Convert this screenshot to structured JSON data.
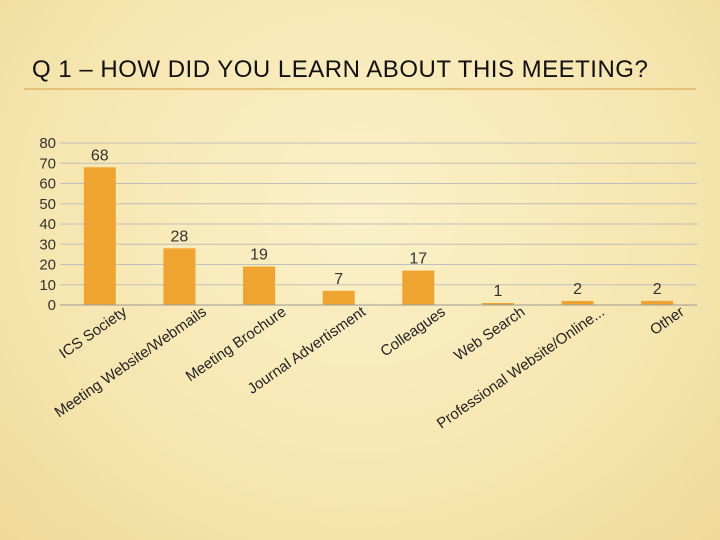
{
  "slide": {
    "title": "Q 1 – HOW DID YOU LEARN ABOUT THIS MEETING?"
  },
  "colors": {
    "bar": "#f0a430",
    "grid": "#bfbfbf",
    "title_rule": "#e7c27a"
  },
  "chart_data": {
    "type": "bar",
    "title": "",
    "xlabel": "",
    "ylabel": "",
    "categories": [
      "ICS Society",
      "Meeting Website/Webmails",
      "Meeting Brochure",
      "Journal Advertisment",
      "Colleagues",
      "Web Search",
      "Professional Website/Online...",
      "Other"
    ],
    "values": [
      68,
      28,
      19,
      7,
      17,
      1,
      2,
      2
    ],
    "data_labels": [
      "68",
      "28",
      "19",
      "7",
      "17",
      "1",
      "2",
      "2"
    ],
    "ylim": [
      0,
      80
    ],
    "yticks": [
      0,
      10,
      20,
      30,
      40,
      50,
      60,
      70,
      80
    ],
    "grid": true,
    "legend": "none"
  }
}
